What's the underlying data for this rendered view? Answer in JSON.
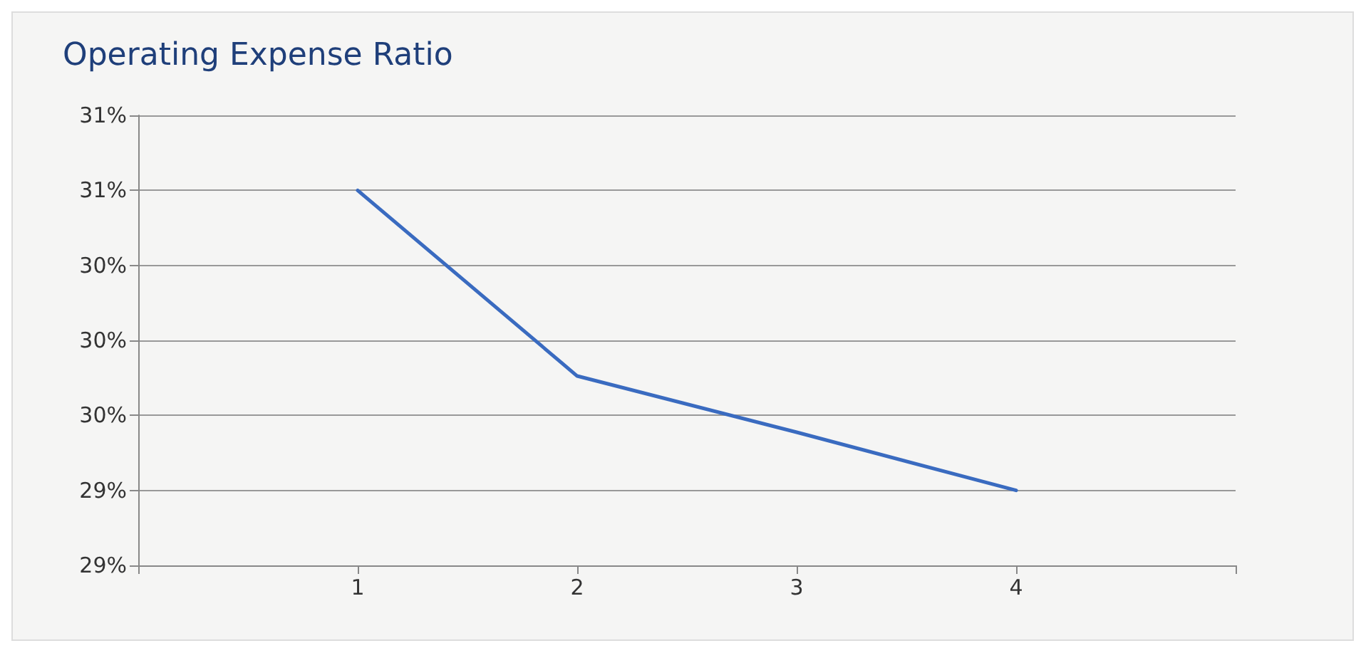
{
  "chart_data": {
    "type": "line",
    "title": "Operating Expense Ratio",
    "x": [
      1,
      2,
      3,
      4
    ],
    "series": [
      {
        "color": "#3a6bc0",
        "values": [
          30.8,
          29.81,
          29.51,
          29.2
        ]
      }
    ],
    "xlim": [
      0,
      5
    ],
    "xticks": [
      {
        "value": 0,
        "label": null
      },
      1,
      2,
      3,
      4,
      {
        "value": 5,
        "label": null
      }
    ],
    "ylim": [
      28.8,
      31.2
    ],
    "yticks": [
      {
        "value": 28.8,
        "label": "29%"
      },
      {
        "value": 29.2,
        "label": "29%"
      },
      {
        "value": 29.6,
        "label": "30%"
      },
      {
        "value": 30.0,
        "label": "30%"
      },
      {
        "value": 30.4,
        "label": "30%"
      },
      {
        "value": 30.8,
        "label": "31%"
      },
      {
        "value": 31.2,
        "label": "31%"
      }
    ],
    "grid": "y",
    "marker": "none",
    "line_style": "solid"
  }
}
